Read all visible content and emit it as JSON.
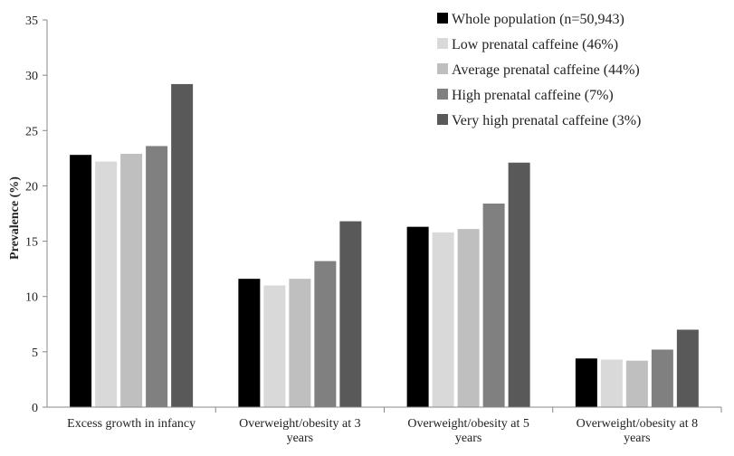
{
  "chart_data": {
    "type": "bar",
    "title": "",
    "xlabel": "",
    "ylabel": "Prevalence (%)",
    "ylim": [
      0,
      35
    ],
    "yticks": [
      0,
      5,
      10,
      15,
      20,
      25,
      30,
      35
    ],
    "grid": false,
    "legend_position": "top-right",
    "categories": [
      [
        "Excess growth in infancy"
      ],
      [
        "Overweight/obesity at 3",
        "years"
      ],
      [
        "Overweight/obesity at 5",
        "years"
      ],
      [
        "Overweight/obesity at 8",
        "years"
      ]
    ],
    "series": [
      {
        "name": "Whole population (n=50,943)",
        "color": "#000000",
        "values": [
          22.8,
          11.6,
          16.3,
          4.4
        ]
      },
      {
        "name": "Low prenatal caffeine (46%)",
        "color": "#d9d9d9",
        "values": [
          22.2,
          11.0,
          15.8,
          4.3
        ]
      },
      {
        "name": "Average prenatal caffeine (44%)",
        "color": "#bfbfbf",
        "values": [
          22.9,
          11.6,
          16.1,
          4.2
        ]
      },
      {
        "name": "High prenatal caffeine (7%)",
        "color": "#808080",
        "values": [
          23.6,
          13.2,
          18.4,
          5.2
        ]
      },
      {
        "name": "Very high prenatal caffeine (3%)",
        "color": "#595959",
        "values": [
          29.2,
          16.8,
          22.1,
          7.0
        ]
      }
    ]
  }
}
